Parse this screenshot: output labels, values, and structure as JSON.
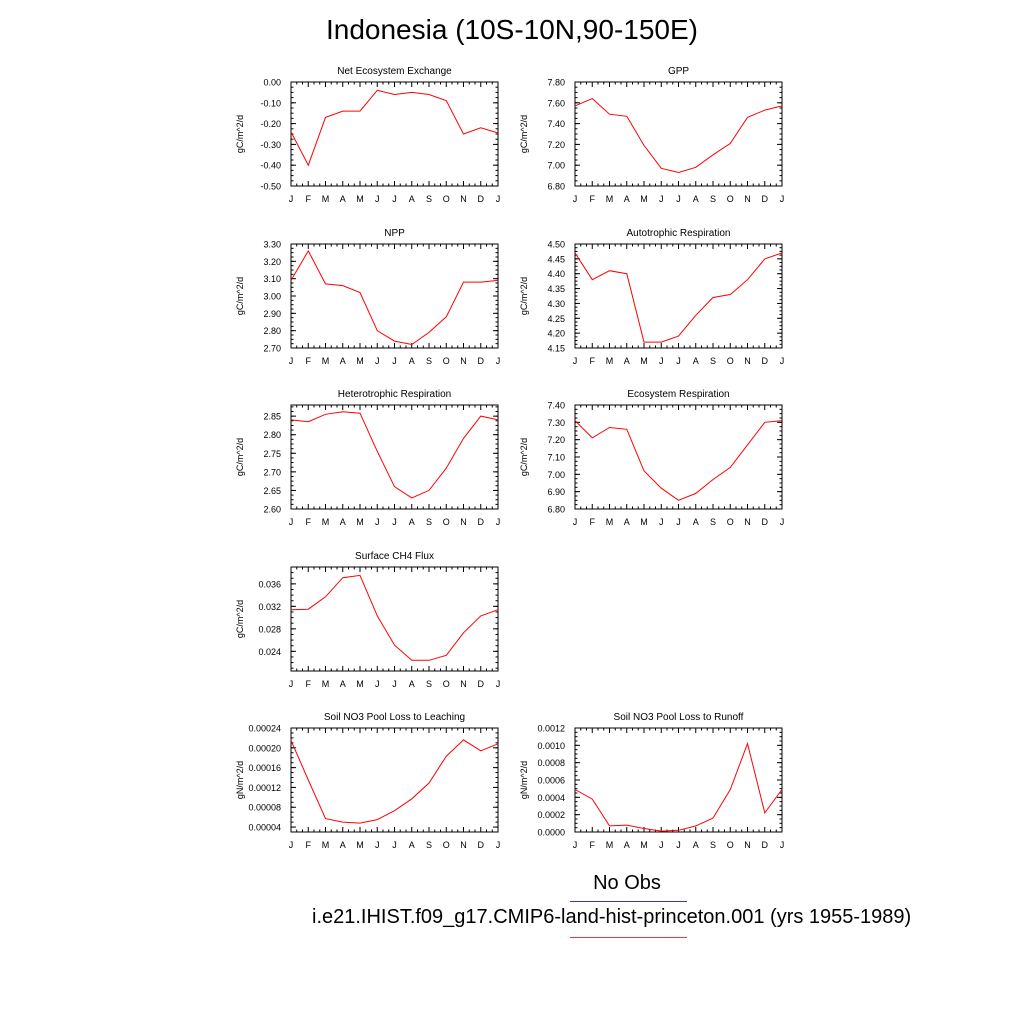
{
  "title": "Indonesia (10S-10N,90-150E)",
  "legend": {
    "obs_label": "No Obs",
    "obs_color": "#3333ff",
    "model_label": "i.e21.IHIST.f09_g17.CMIP6-land-hist-princeton.001 (yrs 1955-1989)",
    "model_color": "#ff0000"
  },
  "chart_data": [
    {
      "type": "line",
      "title": "Net Ecosystem Exchange",
      "ylabel": "gC/m^2/d",
      "categories": [
        "J",
        "F",
        "M",
        "A",
        "M",
        "J",
        "J",
        "A",
        "S",
        "O",
        "N",
        "D",
        "J"
      ],
      "values": [
        -0.24,
        -0.4,
        -0.17,
        -0.14,
        -0.14,
        -0.04,
        -0.06,
        -0.05,
        -0.06,
        -0.09,
        -0.25,
        -0.22,
        -0.245
      ],
      "ylim": [
        -0.5,
        0.0
      ],
      "yticks": [
        0.0,
        -0.1,
        -0.2,
        -0.3,
        -0.4,
        -0.5
      ],
      "yticklabels": [
        "0.00",
        "-0.10",
        "-0.20",
        "-0.30",
        "-0.40",
        "-0.50"
      ],
      "color": "#ff0000"
    },
    {
      "type": "line",
      "title": "GPP",
      "ylabel": "gC/m^2/d",
      "categories": [
        "J",
        "F",
        "M",
        "A",
        "M",
        "J",
        "J",
        "A",
        "S",
        "O",
        "N",
        "D",
        "J"
      ],
      "values": [
        7.57,
        7.64,
        7.49,
        7.47,
        7.19,
        6.97,
        6.93,
        6.98,
        7.1,
        7.21,
        7.46,
        7.53,
        7.57
      ],
      "ylim": [
        6.8,
        7.8
      ],
      "yticks": [
        7.8,
        7.6,
        7.4,
        7.2,
        7.0,
        6.8
      ],
      "yticklabels": [
        "7.80",
        "7.60",
        "7.40",
        "7.20",
        "7.00",
        "6.80"
      ],
      "color": "#ff0000"
    },
    {
      "type": "line",
      "title": "NPP",
      "ylabel": "gC/m^2/d",
      "categories": [
        "J",
        "F",
        "M",
        "A",
        "M",
        "J",
        "J",
        "A",
        "S",
        "O",
        "N",
        "D",
        "J"
      ],
      "values": [
        3.09,
        3.26,
        3.07,
        3.06,
        3.02,
        2.8,
        2.74,
        2.72,
        2.79,
        2.88,
        3.08,
        3.08,
        3.09
      ],
      "ylim": [
        2.7,
        3.3
      ],
      "yticks": [
        3.3,
        3.2,
        3.1,
        3.0,
        2.9,
        2.8,
        2.7
      ],
      "yticklabels": [
        "3.30",
        "3.20",
        "3.10",
        "3.00",
        "2.90",
        "2.80",
        "2.70"
      ],
      "color": "#ff0000"
    },
    {
      "type": "line",
      "title": "Autotrophic Respiration",
      "ylabel": "gC/m^2/d",
      "categories": [
        "J",
        "F",
        "M",
        "A",
        "M",
        "J",
        "J",
        "A",
        "S",
        "O",
        "N",
        "D",
        "J"
      ],
      "values": [
        4.47,
        4.38,
        4.41,
        4.4,
        4.17,
        4.17,
        4.19,
        4.26,
        4.32,
        4.33,
        4.38,
        4.45,
        4.47
      ],
      "ylim": [
        4.15,
        4.5
      ],
      "yticks": [
        4.5,
        4.45,
        4.4,
        4.35,
        4.3,
        4.25,
        4.2,
        4.15
      ],
      "yticklabels": [
        "4.50",
        "4.45",
        "4.40",
        "4.35",
        "4.30",
        "4.25",
        "4.20",
        "4.15"
      ],
      "color": "#ff0000"
    },
    {
      "type": "line",
      "title": "Heterotrophic Respiration",
      "ylabel": "gC/m^2/d",
      "categories": [
        "J",
        "F",
        "M",
        "A",
        "M",
        "J",
        "J",
        "A",
        "S",
        "O",
        "N",
        "D",
        "J"
      ],
      "values": [
        2.84,
        2.835,
        2.855,
        2.862,
        2.858,
        2.755,
        2.66,
        2.63,
        2.65,
        2.71,
        2.79,
        2.85,
        2.84
      ],
      "ylim": [
        2.6,
        2.88
      ],
      "yticks": [
        2.85,
        2.8,
        2.75,
        2.7,
        2.65,
        2.6
      ],
      "yticklabels": [
        "2.85",
        "2.80",
        "2.75",
        "2.70",
        "2.65",
        "2.60"
      ],
      "color": "#ff0000"
    },
    {
      "type": "line",
      "title": "Ecosystem Respiration",
      "ylabel": "gC/m^2/d",
      "categories": [
        "J",
        "F",
        "M",
        "A",
        "M",
        "J",
        "J",
        "A",
        "S",
        "O",
        "N",
        "D",
        "J"
      ],
      "values": [
        7.31,
        7.21,
        7.27,
        7.26,
        7.02,
        6.92,
        6.85,
        6.89,
        6.97,
        7.04,
        7.17,
        7.3,
        7.31
      ],
      "ylim": [
        6.8,
        7.4
      ],
      "yticks": [
        7.4,
        7.3,
        7.2,
        7.1,
        7.0,
        6.9,
        6.8
      ],
      "yticklabels": [
        "7.40",
        "7.30",
        "7.20",
        "7.10",
        "7.00",
        "6.90",
        "6.80"
      ],
      "color": "#ff0000"
    },
    {
      "type": "line",
      "title": "Surface CH4 Flux",
      "ylabel": "gC/m^2/d",
      "categories": [
        "J",
        "F",
        "M",
        "A",
        "M",
        "J",
        "J",
        "A",
        "S",
        "O",
        "N",
        "D",
        "J"
      ],
      "values": [
        0.0314,
        0.0315,
        0.0337,
        0.0371,
        0.0375,
        0.0303,
        0.0251,
        0.0224,
        0.0224,
        0.0233,
        0.0273,
        0.0303,
        0.0314
      ],
      "ylim": [
        0.0205,
        0.039
      ],
      "yticks": [
        0.036,
        0.032,
        0.028,
        0.024
      ],
      "yticklabels": [
        "0.036",
        "0.032",
        "0.028",
        "0.024"
      ],
      "color": "#ff0000"
    },
    {
      "type": "line",
      "title": "Soil NO3 Pool Loss to Leaching",
      "ylabel": "gN/m^2/d",
      "categories": [
        "J",
        "F",
        "M",
        "A",
        "M",
        "J",
        "J",
        "A",
        "S",
        "O",
        "N",
        "D",
        "J"
      ],
      "values": [
        0.000215,
        0.000135,
        5.7e-05,
        5e-05,
        4.8e-05,
        5.5e-05,
        7.3e-05,
        9.7e-05,
        0.000129,
        0.000183,
        0.000216,
        0.000194,
        0.000208
      ],
      "ylim": [
        3e-05,
        0.00024
      ],
      "yticks": [
        0.00024,
        0.0002,
        0.00016,
        0.00012,
        8e-05,
        4e-05
      ],
      "yticklabels": [
        "0.00024",
        "0.00020",
        "0.00016",
        "0.00012",
        "0.00008",
        "0.00004"
      ],
      "color": "#ff0000"
    },
    {
      "type": "line",
      "title": "Soil NO3 Pool Loss to Runoff",
      "ylabel": "gN/m^2/d",
      "categories": [
        "J",
        "F",
        "M",
        "A",
        "M",
        "J",
        "J",
        "A",
        "S",
        "O",
        "N",
        "D",
        "J"
      ],
      "values": [
        0.00049,
        0.00038,
        7e-05,
        8e-05,
        4e-05,
        1e-05,
        2e-05,
        7e-05,
        0.00016,
        0.00049,
        0.00102,
        0.00022,
        0.00049
      ],
      "ylim": [
        0.0,
        0.0012
      ],
      "yticks": [
        0.0012,
        0.001,
        0.0008,
        0.0006,
        0.0004,
        0.0002,
        0.0
      ],
      "yticklabels": [
        "0.0012",
        "0.0010",
        "0.0008",
        "0.0006",
        "0.0004",
        "0.0002",
        "0.0000"
      ],
      "color": "#ff0000"
    }
  ]
}
